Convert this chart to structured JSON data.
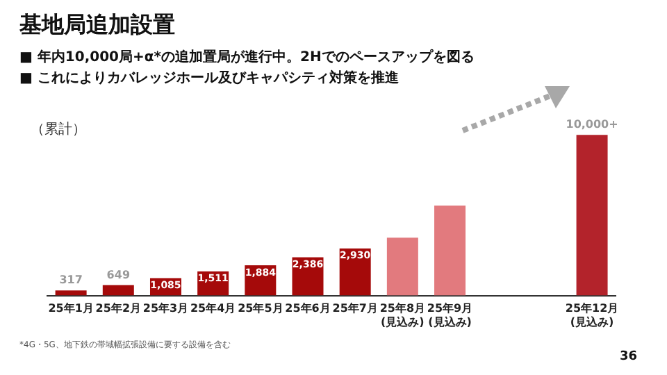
{
  "chart_data": {
    "type": "bar",
    "title": "基地局追加設置",
    "ylabel": "（累計）",
    "annotations": [
      "■ 年内10,000局+α*の追加置局が進行中。2Hでのペースアップを図る",
      "■ これによりカバレッジホール及びキャパシティ対策を推進",
      "*4G・5G、地下鉄の帯域幅拡張設備に要する設備を含む",
      "36"
    ],
    "categories": [
      "25年1月",
      "25年2月",
      "25年3月",
      "25年4月",
      "25年5月",
      "25年6月",
      "25年7月",
      "25年8月\n(見込み)",
      "25年9月\n(見込み)",
      null,
      null,
      "25年12月\n(見込み)"
    ],
    "values": [
      317,
      649,
      1085,
      1511,
      1884,
      2386,
      2930,
      3600,
      5600,
      null,
      null,
      10000
    ],
    "value_labels": [
      "317",
      "649",
      "1,085",
      "1,511",
      "1,884",
      "2,386",
      "2,930",
      null,
      null,
      null,
      null,
      "10,000+"
    ],
    "colors": [
      "#a50a0a",
      "#a50a0a",
      "#a50a0a",
      "#a50a0a",
      "#a50a0a",
      "#a50a0a",
      "#a50a0a",
      "#e27a7e",
      "#e27a7e",
      "#a50a0a",
      "#a50a0a",
      "#b3232b"
    ],
    "grid": false,
    "legend": false
  }
}
